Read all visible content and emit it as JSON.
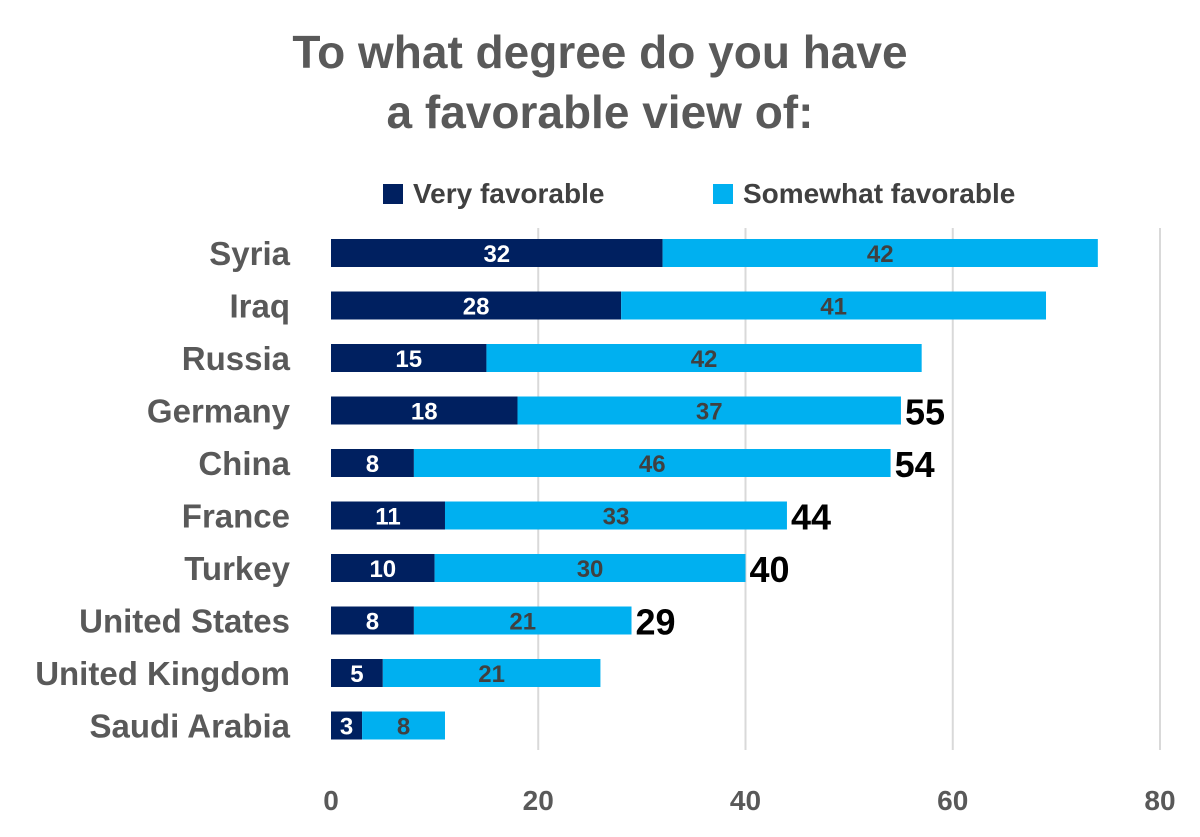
{
  "title_lines": [
    "To what degree do you have",
    "a favorable view of:"
  ],
  "colors": {
    "very": "#002060",
    "somewhat": "#00b0f0",
    "grid": "#d9d9d9",
    "label_text": "#595959",
    "total_text": "#000000"
  },
  "chart_data": {
    "type": "bar",
    "orientation": "horizontal",
    "stacked": true,
    "title": "To what degree do you have a favorable view of:",
    "categories": [
      "Syria",
      "Iraq",
      "Russia",
      "Germany",
      "China",
      "France",
      "Turkey",
      "United States",
      "United Kingdom",
      "Saudi Arabia"
    ],
    "series": [
      {
        "name": "Very favorable",
        "values": [
          32,
          28,
          15,
          18,
          8,
          11,
          10,
          8,
          5,
          3
        ]
      },
      {
        "name": "Somewhat favorable",
        "values": [
          42,
          41,
          42,
          37,
          46,
          33,
          30,
          21,
          21,
          8
        ]
      }
    ],
    "totals_labels": [
      "",
      "",
      "",
      "55",
      "54",
      "44",
      "40",
      "29",
      "",
      ""
    ],
    "xlim": [
      0,
      80
    ],
    "xticks": [
      "0",
      "20",
      "40",
      "60",
      "80"
    ],
    "grid": "vertical",
    "legend_position": "top"
  }
}
